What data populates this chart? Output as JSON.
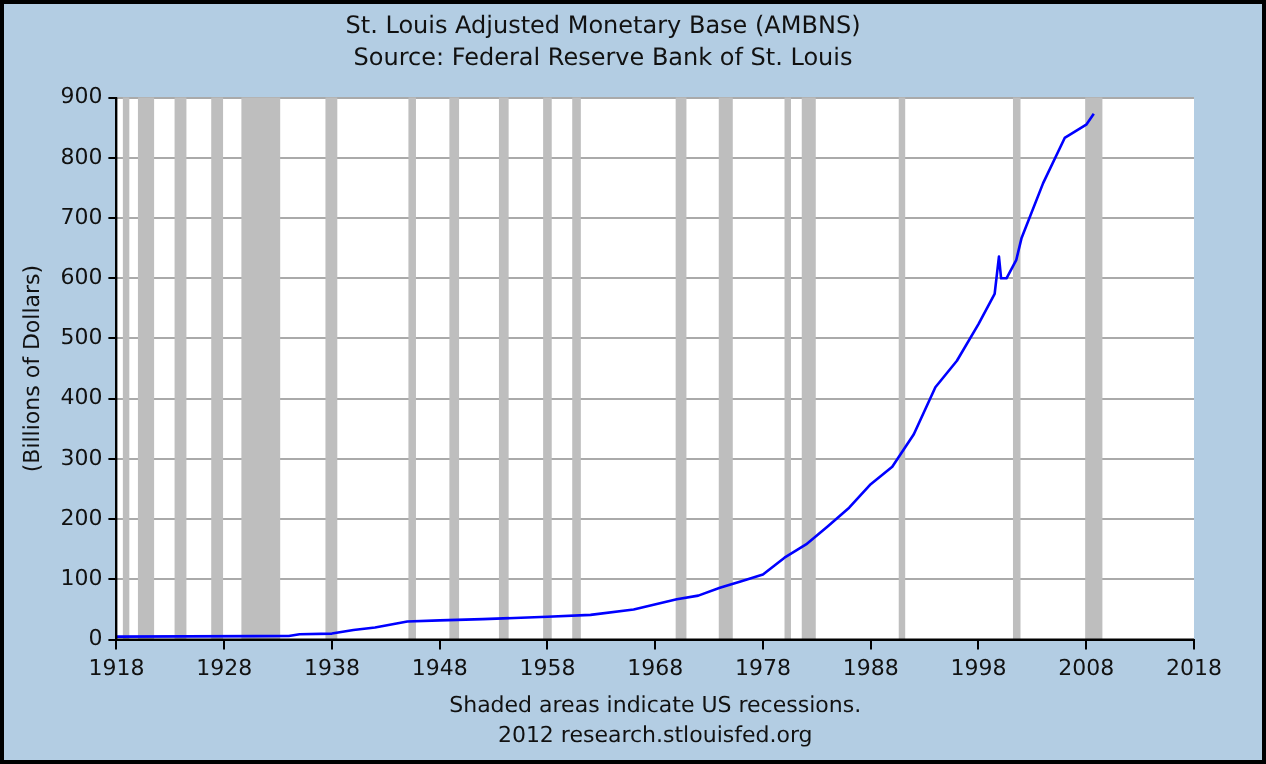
{
  "chart_data": {
    "type": "line",
    "title": "St. Louis Adjusted Monetary Base (AMBNS)",
    "subtitle": "Source: Federal Reserve Bank of St. Louis",
    "ylabel": "(Billions of Dollars)",
    "annotations": [
      "Shaded areas indicate US recessions.",
      "2012 research.stlouisfed.org"
    ],
    "x": [
      1918,
      1934,
      1935,
      1938,
      1940,
      1942,
      1945,
      1948,
      1952,
      1958,
      1962,
      1966,
      1970,
      1972,
      1974,
      1976,
      1978,
      1980,
      1982,
      1984,
      1986,
      1988,
      1990,
      1992,
      1994,
      1996,
      1998,
      1999.5,
      1999.9,
      2000.1,
      2000.6,
      2001.5,
      2002,
      2004,
      2006,
      2008,
      2008.7
    ],
    "series": [
      {
        "color": "#0000ff",
        "values": [
          5,
          6,
          9,
          10,
          16,
          20,
          30,
          32,
          34,
          38,
          41,
          50,
          67,
          73,
          86,
          97,
          108,
          136,
          158,
          188,
          219,
          258,
          287,
          341,
          419,
          463,
          524,
          574,
          636,
          600,
          600,
          630,
          667,
          758,
          833,
          855,
          873
        ]
      }
    ],
    "bands": [
      {
        "axis": "x",
        "from": 1918.6,
        "to": 1919.2,
        "color": "#bebebe"
      },
      {
        "axis": "x",
        "from": 1920,
        "to": 1921.5,
        "color": "#bebebe"
      },
      {
        "axis": "x",
        "from": 1923.4,
        "to": 1924.5,
        "color": "#bebebe"
      },
      {
        "axis": "x",
        "from": 1926.8,
        "to": 1927.9,
        "color": "#bebebe"
      },
      {
        "axis": "x",
        "from": 1929.6,
        "to": 1933.2,
        "color": "#bebebe"
      },
      {
        "axis": "x",
        "from": 1937.4,
        "to": 1938.5,
        "color": "#bebebe"
      },
      {
        "axis": "x",
        "from": 1945.1,
        "to": 1945.8,
        "color": "#bebebe"
      },
      {
        "axis": "x",
        "from": 1948.9,
        "to": 1949.8,
        "color": "#bebebe"
      },
      {
        "axis": "x",
        "from": 1953.5,
        "to": 1954.4,
        "color": "#bebebe"
      },
      {
        "axis": "x",
        "from": 1957.6,
        "to": 1958.4,
        "color": "#bebebe"
      },
      {
        "axis": "x",
        "from": 1960.3,
        "to": 1961.1,
        "color": "#bebebe"
      },
      {
        "axis": "x",
        "from": 1969.9,
        "to": 1970.9,
        "color": "#bebebe"
      },
      {
        "axis": "x",
        "from": 1973.9,
        "to": 1975.2,
        "color": "#bebebe"
      },
      {
        "axis": "x",
        "from": 1980,
        "to": 1980.6,
        "color": "#bebebe"
      },
      {
        "axis": "x",
        "from": 1981.6,
        "to": 1982.9,
        "color": "#bebebe"
      },
      {
        "axis": "x",
        "from": 1990.6,
        "to": 1991.2,
        "color": "#bebebe"
      },
      {
        "axis": "x",
        "from": 2001.2,
        "to": 2001.9,
        "color": "#bebebe"
      },
      {
        "axis": "x",
        "from": 2007.9,
        "to": 2009.5,
        "color": "#bebebe"
      }
    ],
    "xlim": [
      1918,
      2018
    ],
    "xticks": [
      1918,
      1928,
      1938,
      1948,
      1958,
      1968,
      1978,
      1988,
      1998,
      2008,
      2018
    ],
    "ylim": [
      0,
      900
    ],
    "yticks": [
      0,
      100,
      200,
      300,
      400,
      500,
      600,
      700,
      800,
      900
    ],
    "grid": "y",
    "legend": false,
    "marker": "none",
    "line_style": "solid"
  }
}
